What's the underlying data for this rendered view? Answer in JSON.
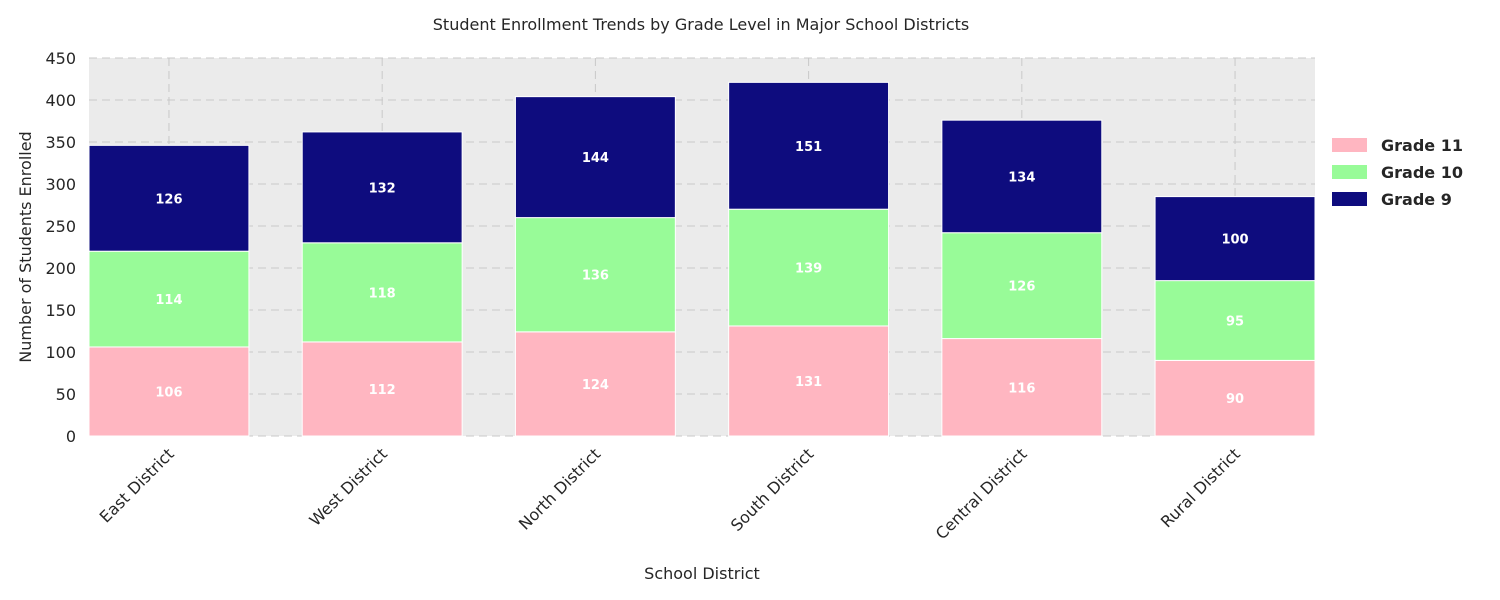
{
  "chart_data": {
    "type": "bar",
    "stacked": true,
    "title": "Student Enrollment Trends by Grade Level in Major School Districts",
    "xlabel": "School District",
    "ylabel": "Number of Students Enrolled",
    "ylim": [
      0,
      450
    ],
    "yticks": [
      0,
      50,
      100,
      150,
      200,
      250,
      300,
      350,
      400,
      450
    ],
    "grid": true,
    "legend_position": "right",
    "categories": [
      "East District",
      "West District",
      "North District",
      "South District",
      "Central District",
      "Rural District"
    ],
    "series": [
      {
        "name": "Grade 11",
        "color": "#ffb6c1",
        "values": [
          106,
          112,
          124,
          131,
          116,
          90
        ]
      },
      {
        "name": "Grade 10",
        "color": "#98fb98",
        "values": [
          114,
          118,
          136,
          139,
          126,
          95
        ]
      },
      {
        "name": "Grade 9",
        "color": "#0e0c7e",
        "values": [
          126,
          132,
          144,
          151,
          134,
          100
        ]
      }
    ],
    "legend_order": [
      "Grade 11",
      "Grade 10",
      "Grade 9"
    ],
    "plot_background": "#ebebeb"
  }
}
